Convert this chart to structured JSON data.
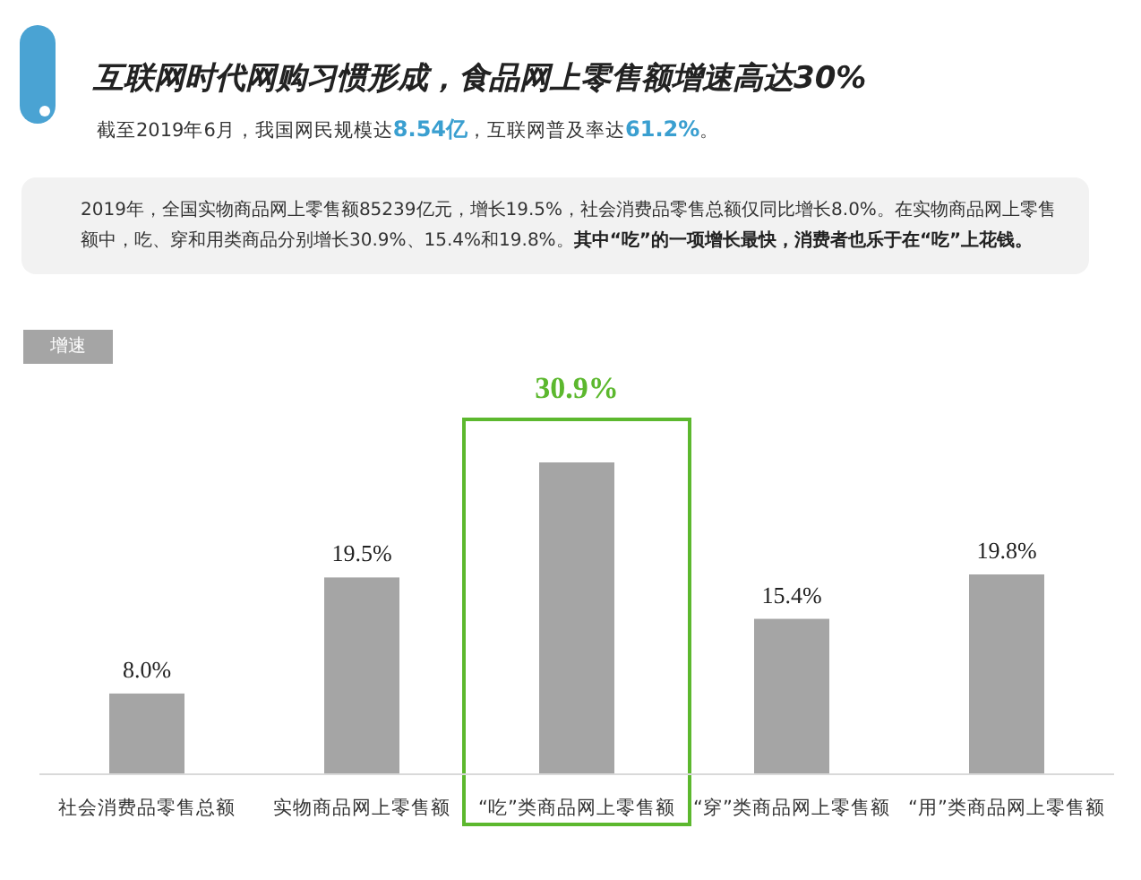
{
  "chart_data": {
    "type": "bar",
    "title": "互联网时代网购习惯形成，食品网上零售额增速高达30%",
    "subtitle": "截至2019年6月，我国网民规模达**8.54亿**，互联网普及率达**61.2%**。",
    "annotations": [
      "2019年，全国实物商品网上零售额85239亿元，增长19.5%，社会消费品零售总额仅同比增长8.0%。在实物商品网上零售额中，吃、穿和用类商品分别增长30.9%、15.4%和19.8%。**其中“吃”的一项增长最快，消费者也乐于在“吃”上花钱。**",
      "增速"
    ],
    "categories": [
      "社会消费品零售总额",
      "实物商品网上零售额",
      "“吃”类商品网上零售额",
      "“穿”类商品网上零售额",
      "“用”类商品网上零售额"
    ],
    "values": [
      8.0,
      19.5,
      30.9,
      15.4,
      19.8
    ],
    "value_labels": [
      "8.0%",
      "19.5%",
      "30.9%",
      "15.4%",
      "19.8%"
    ],
    "color": "#a5a5a5"
  }
}
